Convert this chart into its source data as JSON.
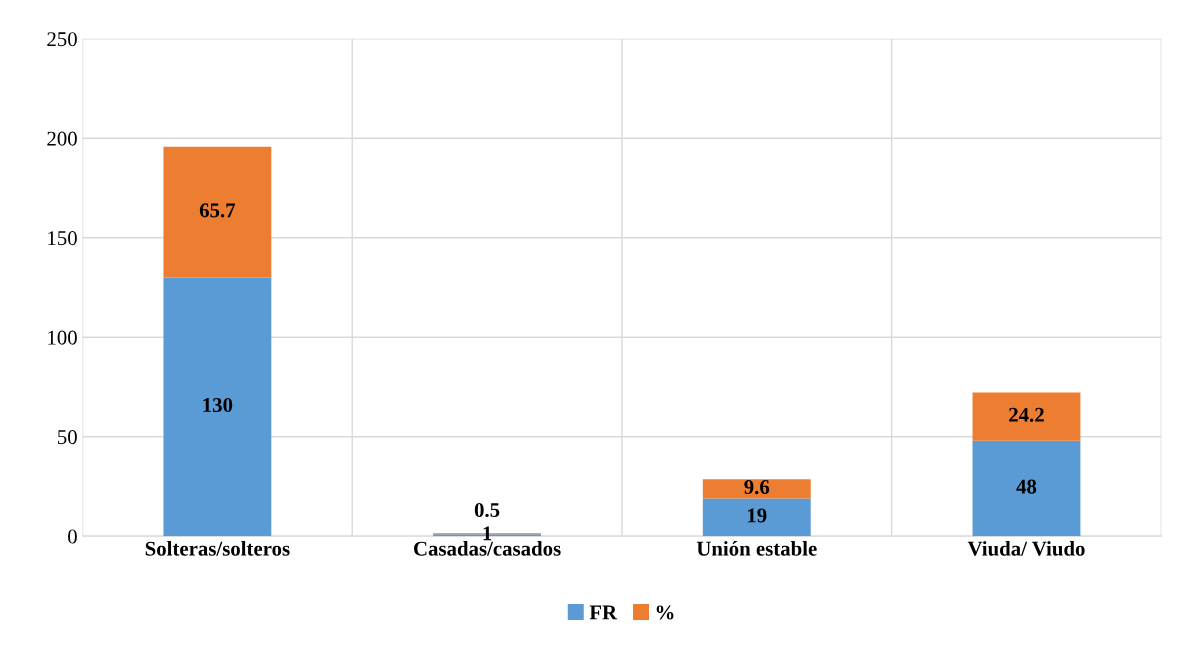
{
  "chart_data": {
    "type": "bar",
    "stacked": true,
    "categories": [
      "Solteras/solteros",
      "Casadas/casados",
      "Unión estable",
      "Viuda/ Viudo"
    ],
    "series": [
      {
        "name": "FR",
        "color": "#5b9bd5",
        "values": [
          130,
          1,
          19,
          48
        ]
      },
      {
        "name": "%",
        "color": "#ed7d31",
        "values": [
          65.7,
          0.5,
          9.6,
          24.2
        ]
      }
    ],
    "ylim": [
      0,
      250
    ],
    "yticks": [
      0,
      50,
      100,
      150,
      200,
      250
    ],
    "grid": true,
    "legend": "bottom",
    "data_labels": true
  }
}
